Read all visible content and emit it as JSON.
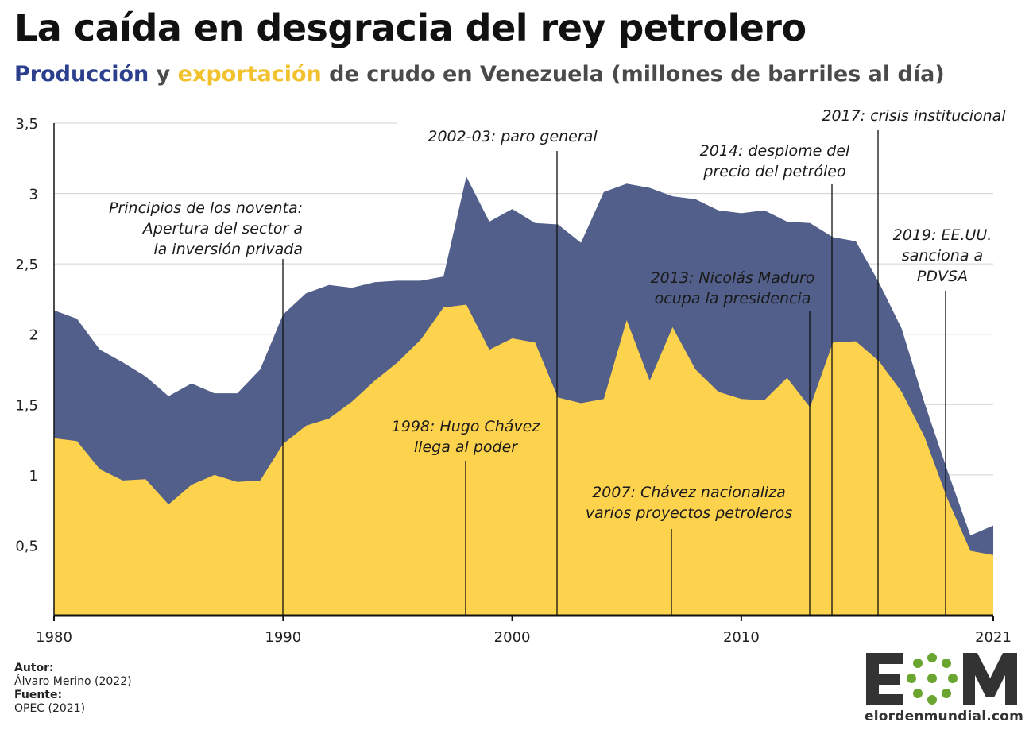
{
  "title": "La caída en desgracia del rey petrolero",
  "subtitle": {
    "production_word": "Producción",
    "connector": "y",
    "export_word": "exportación",
    "rest": "de crudo en Venezuela (millones de barriles al día)"
  },
  "colors": {
    "production": "#515f8a",
    "exports": "#fdd34d",
    "production_text": "#2b3f8c",
    "exports_text": "#f2c12e",
    "grid": "#d0d0d0",
    "axis": "#111111"
  },
  "chart_data": {
    "type": "area",
    "x": [
      1980,
      1981,
      1982,
      1983,
      1984,
      1985,
      1986,
      1987,
      1988,
      1989,
      1990,
      1991,
      1992,
      1993,
      1994,
      1995,
      1996,
      1997,
      1998,
      1999,
      2000,
      2001,
      2002,
      2003,
      2004,
      2005,
      2006,
      2007,
      2008,
      2009,
      2010,
      2011,
      2012,
      2013,
      2014,
      2015,
      2016,
      2017,
      2018,
      2019,
      2020,
      2021
    ],
    "series": [
      {
        "name": "Producción",
        "values": [
          2.17,
          2.11,
          1.89,
          1.8,
          1.7,
          1.56,
          1.65,
          1.58,
          1.58,
          1.75,
          2.14,
          2.29,
          2.35,
          2.33,
          2.37,
          2.38,
          2.38,
          2.41,
          3.12,
          2.8,
          2.89,
          2.79,
          2.78,
          2.65,
          3.01,
          3.07,
          3.04,
          2.98,
          2.96,
          2.88,
          2.86,
          2.88,
          2.8,
          2.79,
          2.69,
          2.66,
          2.37,
          2.04,
          1.51,
          1.03,
          0.57,
          0.64
        ]
      },
      {
        "name": "Exportación",
        "values": [
          1.26,
          1.24,
          1.04,
          0.96,
          0.97,
          0.79,
          0.93,
          1.0,
          0.95,
          0.96,
          1.22,
          1.35,
          1.4,
          1.52,
          1.67,
          1.8,
          1.96,
          2.19,
          2.21,
          1.89,
          1.97,
          1.94,
          1.55,
          1.51,
          1.54,
          2.1,
          1.67,
          2.05,
          1.75,
          1.59,
          1.54,
          1.53,
          1.69,
          1.48,
          1.94,
          1.95,
          1.81,
          1.59,
          1.27,
          0.83,
          0.46,
          0.43
        ]
      }
    ],
    "ylim": [
      0,
      3.5
    ],
    "xlim": [
      1980,
      2021
    ],
    "y_ticks": [
      "0,5",
      "1",
      "1,5",
      "2",
      "2,5",
      "3",
      "3,5"
    ],
    "y_tick_values": [
      0.5,
      1,
      1.5,
      2,
      2.5,
      3,
      3.5
    ],
    "x_ticks": [
      "1980",
      "1990",
      "2000",
      "2010",
      "2021"
    ],
    "x_tick_values": [
      1980,
      1990,
      2000,
      2010,
      2021
    ],
    "grid": true,
    "annotations": [
      {
        "year": 1990,
        "lines": [
          "Principios de los noventa:",
          "Apertura del sector a",
          "la inversión privada"
        ]
      },
      {
        "year": 1998,
        "lines": [
          "1998: Hugo Chávez",
          "llega al poder"
        ]
      },
      {
        "year": 2002,
        "lines": [
          "2002-03: paro general"
        ]
      },
      {
        "year": 2007,
        "lines": [
          "2007: Chávez nacionaliza",
          "varios proyectos petroleros"
        ]
      },
      {
        "year": 2013,
        "lines": [
          "2013: Nicolás Maduro",
          "ocupa la presidencia"
        ]
      },
      {
        "year": 2014,
        "lines": [
          "2014: desplome del",
          "precio del petróleo"
        ]
      },
      {
        "year": 2017,
        "lines": [
          "2017: crisis institucional"
        ]
      },
      {
        "year": 2019,
        "lines": [
          "2019: EE.UU.",
          "sanciona a",
          "PDVSA"
        ]
      }
    ]
  },
  "footer": {
    "author_label": "Autor:",
    "author": "Álvaro Merino (2022)",
    "source_label": "Fuente:",
    "source": "OPEC (2021)"
  },
  "logo": {
    "letters": "EOM",
    "text": "elordenmundial.com",
    "color": "#333333",
    "accent": "#6aa52f"
  }
}
